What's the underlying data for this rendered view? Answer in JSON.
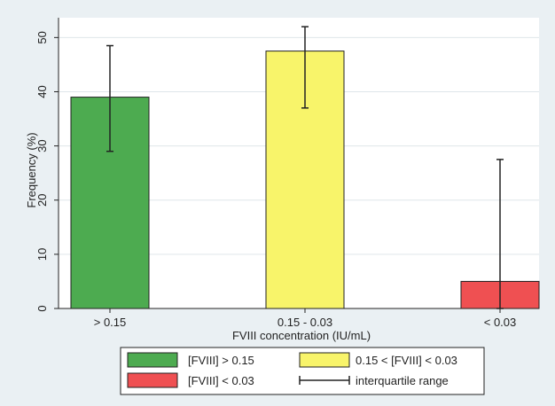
{
  "chart_data": {
    "type": "bar",
    "categories": [
      "> 0.15",
      "0.15 - 0.03",
      "< 0.03"
    ],
    "series": [
      {
        "values": [
          39,
          47.5,
          5
        ],
        "iqr_low": [
          29,
          37,
          0
        ],
        "iqr_high": [
          48.5,
          52,
          27.5
        ],
        "colors": [
          "#4dab50",
          "#f8f46a",
          "#ef5052"
        ]
      }
    ],
    "xlabel": "FVIII concentration (IU/mL)",
    "ylabel": "Frequency (%)",
    "ylim": [
      0,
      53
    ],
    "yticks": [
      0,
      10,
      20,
      30,
      40,
      50
    ],
    "grid": "horizontal",
    "legend": {
      "position": "bottom",
      "entries": [
        {
          "label": "[FVIII] > 0.15",
          "color": "#4dab50",
          "kind": "box"
        },
        {
          "label": "0.15 < [FVIII] < 0.03",
          "color": "#f8f46a",
          "kind": "box"
        },
        {
          "label": "[FVIII] < 0.03",
          "color": "#ef5052",
          "kind": "box"
        },
        {
          "label": "interquartile range",
          "color": "#222222",
          "kind": "errorbar"
        }
      ]
    }
  }
}
